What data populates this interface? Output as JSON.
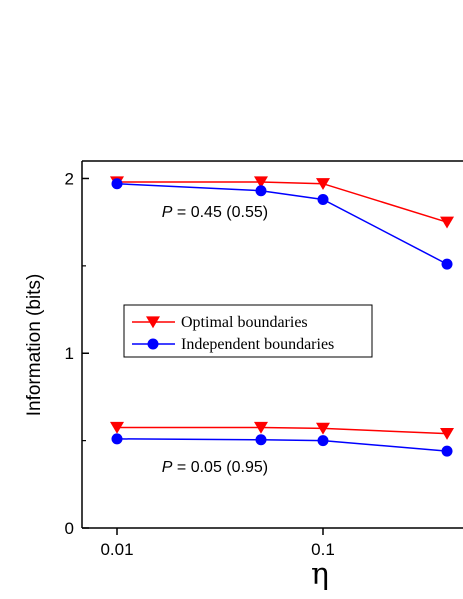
{
  "chart_data": {
    "type": "line",
    "xlabel": "η",
    "ylabel": "Information (bits)",
    "xscale": "log",
    "xlim": [
      0.005,
      0.4
    ],
    "ylim": [
      0,
      2.1
    ],
    "x_ticks": [
      {
        "value": 0.01,
        "label": "0.01"
      },
      {
        "value": 0.1,
        "label": "0.1"
      }
    ],
    "y_ticks": [
      {
        "value": 0,
        "label": "0"
      },
      {
        "value": 1,
        "label": "1"
      },
      {
        "value": 2,
        "label": "2"
      }
    ],
    "legend_position": "middle-left",
    "series": [
      {
        "name": "Optimal boundaries",
        "color": "#ff0000",
        "marker": "triangle-down",
        "groups": [
          {
            "x": [
              0.01,
              0.05,
              0.1,
              0.4
            ],
            "y": [
              1.98,
              1.98,
              1.97,
              1.75
            ]
          },
          {
            "x": [
              0.01,
              0.05,
              0.1,
              0.4
            ],
            "y": [
              0.575,
              0.575,
              0.57,
              0.54
            ]
          }
        ]
      },
      {
        "name": "Independent boundaries",
        "color": "#0000ff",
        "marker": "circle",
        "groups": [
          {
            "x": [
              0.01,
              0.05,
              0.1,
              0.4
            ],
            "y": [
              1.97,
              1.93,
              1.88,
              1.51
            ]
          },
          {
            "x": [
              0.01,
              0.05,
              0.1,
              0.4
            ],
            "y": [
              0.51,
              0.505,
              0.5,
              0.44
            ]
          }
        ]
      }
    ],
    "annotations": [
      {
        "italic": "P",
        "text": " = 0.45 (0.55)",
        "x": 0.0165,
        "y": 1.78
      },
      {
        "italic": "P",
        "text": " = 0.05 (0.95)",
        "x": 0.0165,
        "y": 0.32
      }
    ]
  }
}
